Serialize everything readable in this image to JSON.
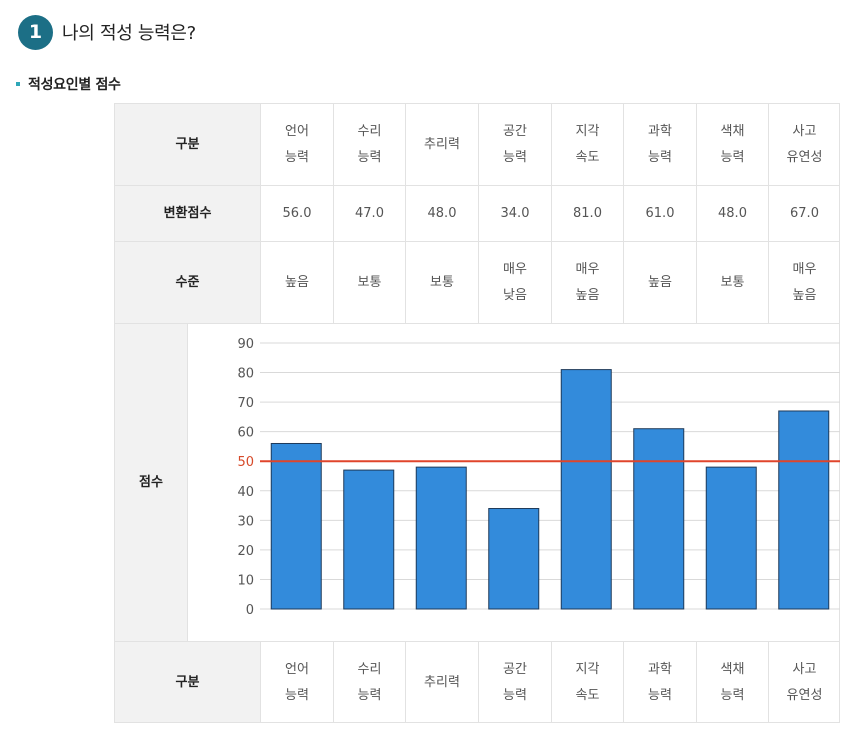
{
  "header": {
    "number": "1",
    "title": "나의 적성 능력은?"
  },
  "section": {
    "title": "적성요인별 점수"
  },
  "table": {
    "row_headers": {
      "category": "구분",
      "score": "변환점수",
      "level": "수준",
      "chart": "점수"
    },
    "columns": [
      "언어\n능력",
      "수리\n능력",
      "추리력",
      "공간\n능력",
      "지각\n속도",
      "과학\n능력",
      "색채\n능력",
      "사고\n유연성"
    ],
    "scores": [
      "56.0",
      "47.0",
      "48.0",
      "34.0",
      "81.0",
      "61.0",
      "48.0",
      "67.0"
    ],
    "levels": [
      "높음",
      "보통",
      "보통",
      "매우\n낮음",
      "매우\n높음",
      "높음",
      "보통",
      "매우\n높음"
    ]
  },
  "chart_data": {
    "type": "bar",
    "categories": [
      "언어 능력",
      "수리 능력",
      "추리력",
      "공간 능력",
      "지각 속도",
      "과학 능력",
      "색채 능력",
      "사고 유연성"
    ],
    "values": [
      56,
      47,
      48,
      34,
      81,
      61,
      48,
      67
    ],
    "ylim": [
      0,
      90
    ],
    "yticks": [
      0,
      10,
      20,
      30,
      40,
      50,
      60,
      70,
      80,
      90
    ],
    "reference_line": 50,
    "grid": true,
    "bar_color": "#338bdb",
    "reference_color": "#e0452b"
  }
}
